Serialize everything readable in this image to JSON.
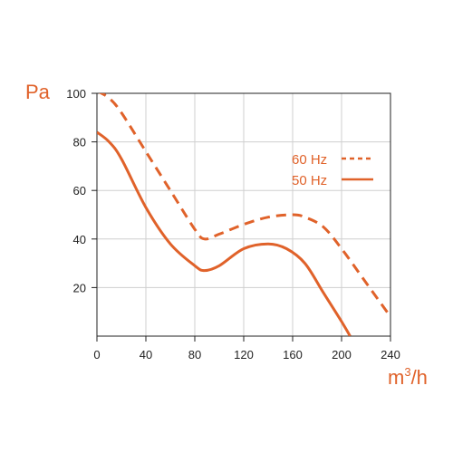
{
  "chart_data": {
    "type": "line",
    "title": "",
    "xlabel": "m",
    "xlabel_sup": "3",
    "xlabel_suffix": "/h",
    "ylabel": "Pa",
    "xlim": [
      0,
      240
    ],
    "ylim": [
      0,
      100
    ],
    "x_ticks": [
      "0",
      "40",
      "80",
      "120",
      "160",
      "200",
      "240"
    ],
    "y_ticks": [
      "20",
      "40",
      "60",
      "80",
      "100"
    ],
    "grid": true,
    "legend_position": "right",
    "accent_color": "#e0622a",
    "series": [
      {
        "name": "60 Hz",
        "style": "dashed",
        "color": "#e0622a",
        "x": [
          0,
          10,
          20,
          40,
          60,
          80,
          88,
          100,
          120,
          140,
          160,
          170,
          185,
          200,
          220,
          240
        ],
        "y": [
          101,
          98,
          92,
          76,
          60,
          44,
          40,
          42,
          46,
          49,
          50,
          49,
          45,
          36,
          22,
          8
        ]
      },
      {
        "name": "50 Hz",
        "style": "solid",
        "color": "#e0622a",
        "x": [
          0,
          10,
          20,
          40,
          60,
          80,
          88,
          100,
          120,
          140,
          155,
          170,
          185,
          200,
          207
        ],
        "y": [
          84,
          80,
          73,
          53,
          38,
          29,
          27,
          29,
          36,
          38,
          36,
          30,
          18,
          6,
          0
        ]
      }
    ]
  }
}
